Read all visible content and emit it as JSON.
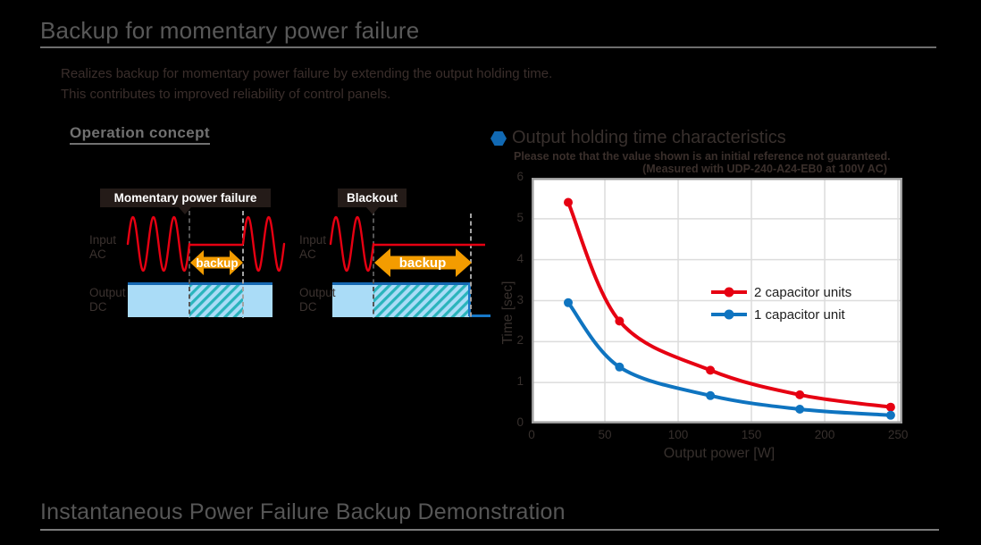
{
  "page": {
    "bg_color": "#000000",
    "title": "Backup for momentary power failure",
    "intro": [
      "Realizes backup for momentary power failure by extending the output holding time.",
      "This contributes to improved reliability of control panels."
    ],
    "footer_title": "Instantaneous Power Failure Backup Demonstration"
  },
  "operation_concept": {
    "heading": "Operation concept",
    "diagram_momentary": {
      "title": "Momentary power failure",
      "input_label": [
        "Input",
        "AC"
      ],
      "output_label": [
        "Output",
        "DC"
      ],
      "backup_label": "backup"
    },
    "diagram_blackout": {
      "title": "Blackout",
      "input_label": [
        "Input",
        "AC"
      ],
      "output_label": [
        "Output",
        "DC"
      ],
      "backup_label": "backup"
    },
    "colors": {
      "wave_red": "#e60012",
      "arrow_orange": "#f39c00",
      "bar_fill": "#aadcf7",
      "bar_top_blue": "#1467b2",
      "hatch_teal": "#2ab4bc",
      "drop_blue": "#1778c8",
      "label_box_bg": "#241b18",
      "dashed_dark": "#565656",
      "dashed_light": "#a3a3a3"
    }
  },
  "chart": {
    "heading": "Output holding time characteristics",
    "bullet_color": "#1169b3",
    "note_line1": "Please note that the value shown is an initial reference not guaranteed.",
    "note_line2": "(Measured with UDP-240-A24-EB0 at 100V AC)"
  },
  "chart_data": {
    "type": "line",
    "title": "Output holding time characteristics",
    "xlabel": "Output power [W]",
    "ylabel": "Time [sec]",
    "x": [
      25,
      60,
      122,
      183,
      245
    ],
    "series": [
      {
        "name": "2 capacitor units",
        "color": "#e60012",
        "values": [
          5.4,
          2.5,
          1.3,
          0.7,
          0.4
        ]
      },
      {
        "name": "1 capacitor unit",
        "color": "#0f74c0",
        "values": [
          2.95,
          1.38,
          0.68,
          0.35,
          0.2
        ]
      }
    ],
    "xlim": [
      0,
      253
    ],
    "ylim": [
      0,
      6
    ],
    "xticks": [
      0,
      50,
      100,
      150,
      200,
      250
    ],
    "yticks": [
      0,
      1,
      2,
      3,
      4,
      5,
      6
    ],
    "grid": true,
    "grid_color": "#dcdcdc",
    "border_color": "#9e9e9e",
    "plot_bg": "#ffffff",
    "legend_position": "inside-right"
  }
}
